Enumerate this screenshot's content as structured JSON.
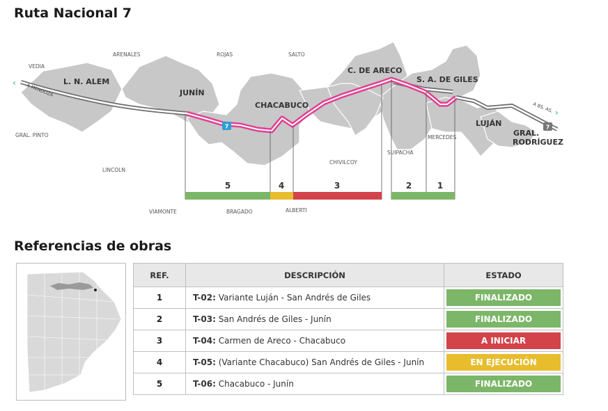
{
  "title": "Ruta Nacional 7",
  "references_title": "Referencias de obras",
  "colors": {
    "finalizado": "#7cb668",
    "a_iniciar": "#d2434a",
    "en_ejecucion": "#e7bd2e",
    "route": "#e23f92",
    "territory": "#c8c8c8"
  },
  "map": {
    "cities": [
      "L. N. ALEM",
      "JUNÍN",
      "CHACABUCO",
      "C. DE ARECO",
      "S. A. DE GILES",
      "LUJÁN",
      "GRAL.",
      "RODRÍGUEZ"
    ],
    "towns": [
      "VEDIA",
      "ARENALES",
      "ROJAS",
      "SALTO",
      "GRAL. PINTO",
      "LINCOLN",
      "CHIVILCOY",
      "SUIPACHA",
      "MERCEDES",
      "VIAMONTE",
      "BRAGADO",
      "ALBERTI"
    ],
    "direction_west": "A MENDOZA",
    "direction_east": "A BS. AS.",
    "route_shield": "7",
    "segments": [
      "5",
      "4",
      "3",
      "2",
      "1"
    ]
  },
  "table": {
    "headers": [
      "REF.",
      "DESCRIPCIÓN",
      "ESTADO"
    ],
    "rows": [
      {
        "ref": "1",
        "code": "T-02:",
        "desc": " Variante Luján - San Andrés de Giles",
        "status": "FINALIZADO"
      },
      {
        "ref": "2",
        "code": "T-03:",
        "desc": " San Andrés de Giles - Junín",
        "status": "FINALIZADO"
      },
      {
        "ref": "3",
        "code": "T-04:",
        "desc": " Carmen de Areco - Chacabuco",
        "status": "A INICIAR"
      },
      {
        "ref": "4",
        "code": "T-05:",
        "desc": " (Variante Chacabuco) San Andrés de Giles - Junín",
        "status": "EN EJECUCIÓN"
      },
      {
        "ref": "5",
        "code": "T-06:",
        "desc": " Chacabuco - Junín",
        "status": "FINALIZADO"
      }
    ]
  }
}
